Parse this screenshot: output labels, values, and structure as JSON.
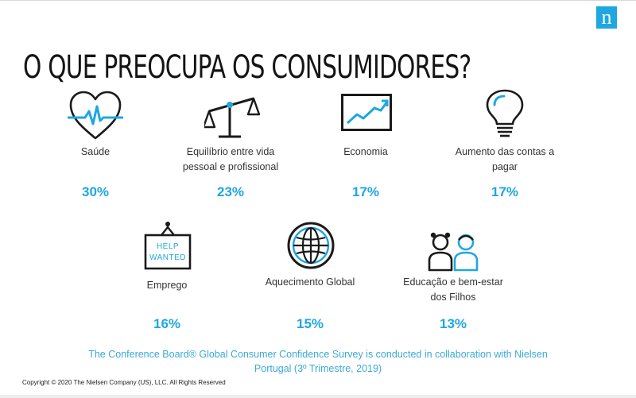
{
  "logo": {
    "letter": "n",
    "color": "#1ea7e1"
  },
  "title": "O QUE PREOCUPA OS CONSUMIDORES?",
  "accent_color": "#1ea7e1",
  "items": [
    {
      "icon": "heart-pulse-icon",
      "label": "Saúde",
      "value": "30%"
    },
    {
      "icon": "balance-scale-icon",
      "label": "Equilíbrio entre vida pessoal e profissional",
      "value": "23%"
    },
    {
      "icon": "economy-chart-icon",
      "label": "Economia",
      "value": "17%"
    },
    {
      "icon": "light-bulb-icon",
      "label": "Aumento das contas a pagar",
      "value": "17%"
    },
    {
      "icon": "help-wanted-sign-icon",
      "label": "Emprego",
      "value": "16%",
      "sign_lines": [
        "HELP",
        "WANTED"
      ]
    },
    {
      "icon": "globe-icon",
      "label": "Aquecimento Global",
      "value": "15%"
    },
    {
      "icon": "children-icon",
      "label": "Educação e bem-estar dos Filhos",
      "value": "13%"
    }
  ],
  "footnote": "The Conference Board® Global Consumer Confidence Survey is conducted in collaboration with Nielsen Portugal (3º Trimestre, 2019)",
  "copyright": "Copyright © 2020 The Nielsen Company (US), LLC. All Rights Reserved"
}
